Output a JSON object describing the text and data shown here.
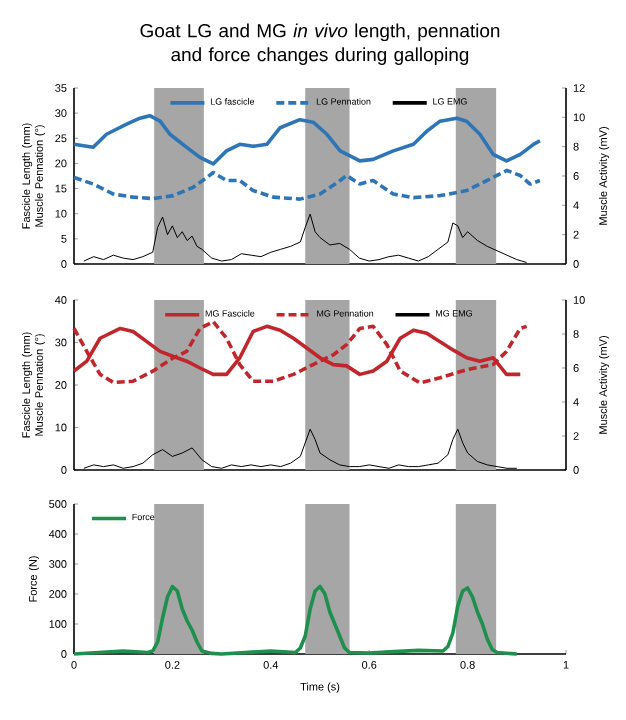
{
  "chart_data": [
    {
      "type": "line",
      "title": "Goat LG and MG *in vivo* length, pennation and force changes during galloping",
      "ylabel": "Fascicle Length (mm) Muscle Pennation (°)",
      "y2label": "Muscle Activity (mV)",
      "xlim": [
        0,
        1
      ],
      "ylim": [
        0,
        35
      ],
      "yticks": [
        0,
        5,
        10,
        15,
        20,
        25,
        30,
        35
      ],
      "y2lim": [
        0,
        12
      ],
      "y2ticks": [
        0,
        2,
        4,
        6,
        8,
        10,
        12
      ],
      "tick_labels": "y",
      "legend": "top",
      "bands": [
        {
          "axis": "x",
          "from": 0.163,
          "to": 0.264,
          "color": "#a6a6a6"
        },
        {
          "axis": "x",
          "from": 0.47,
          "to": 0.56,
          "color": "#a6a6a6"
        },
        {
          "axis": "x",
          "from": 0.776,
          "to": 0.858,
          "color": "#a6a6a6"
        }
      ],
      "series": [
        {
          "name": "LG fascicle",
          "color": "#2e75b6",
          "line_style": "solid",
          "x": [
            0,
            0.039,
            0.066,
            0.107,
            0.134,
            0.154,
            0.175,
            0.195,
            0.229,
            0.256,
            0.283,
            0.31,
            0.337,
            0.364,
            0.392,
            0.419,
            0.459,
            0.486,
            0.514,
            0.541,
            0.581,
            0.608,
            0.649,
            0.69,
            0.717,
            0.744,
            0.778,
            0.798,
            0.825,
            0.852,
            0.879,
            0.907,
            0.934,
            0.947
          ],
          "values": [
            23.8,
            23.2,
            25.8,
            27.8,
            29,
            29.5,
            28.4,
            25.8,
            23.2,
            21.2,
            19.9,
            22.5,
            23.8,
            23.4,
            23.8,
            27.1,
            28.7,
            28.2,
            25.8,
            22.5,
            20.5,
            20.8,
            22.5,
            23.8,
            26.4,
            28.4,
            29,
            28.4,
            25.8,
            21.8,
            20.5,
            21.8,
            23.8,
            24.5
          ]
        },
        {
          "name": "LG Pennation",
          "color": "#2e75b6",
          "line_style": "dashed",
          "x": [
            0,
            0.039,
            0.08,
            0.12,
            0.161,
            0.202,
            0.243,
            0.27,
            0.283,
            0.31,
            0.337,
            0.364,
            0.405,
            0.459,
            0.5,
            0.541,
            0.554,
            0.581,
            0.608,
            0.649,
            0.69,
            0.744,
            0.798,
            0.839,
            0.88,
            0.907,
            0.927,
            0.947
          ],
          "values": [
            17.2,
            15.9,
            13.9,
            13.3,
            13,
            13.6,
            15.3,
            17.2,
            18.2,
            16.6,
            16.6,
            14.6,
            13.3,
            12.9,
            13.9,
            16.6,
            17.6,
            15.9,
            16.6,
            13.9,
            13.2,
            13.6,
            14.6,
            16.6,
            18.6,
            17.6,
            15.9,
            16.6
          ]
        },
        {
          "name": "LG EMG",
          "color": "#000000",
          "line_style": "solid",
          "axis": "y2",
          "x": [
            0.02,
            0.04,
            0.06,
            0.08,
            0.1,
            0.12,
            0.14,
            0.16,
            0.17,
            0.18,
            0.19,
            0.2,
            0.21,
            0.22,
            0.23,
            0.24,
            0.25,
            0.26,
            0.28,
            0.3,
            0.32,
            0.34,
            0.36,
            0.38,
            0.4,
            0.42,
            0.44,
            0.46,
            0.47,
            0.48,
            0.49,
            0.5,
            0.52,
            0.54,
            0.56,
            0.58,
            0.6,
            0.62,
            0.64,
            0.66,
            0.68,
            0.7,
            0.72,
            0.74,
            0.76,
            0.77,
            0.78,
            0.79,
            0.8,
            0.82,
            0.84,
            0.86,
            0.88,
            0.9,
            0.92
          ],
          "values": [
            0.2,
            0.5,
            0.3,
            0.6,
            0.4,
            0.3,
            0.5,
            0.8,
            2.5,
            3.2,
            2.0,
            2.6,
            1.8,
            2.2,
            1.6,
            1.9,
            1.2,
            1.0,
            0.4,
            0.2,
            0.3,
            0.7,
            0.6,
            0.5,
            0.8,
            1.0,
            1.2,
            1.5,
            2.5,
            3.4,
            2.2,
            1.8,
            1.3,
            1.4,
            1.0,
            0.4,
            0.2,
            0.3,
            0.5,
            0.6,
            0.4,
            0.2,
            0.5,
            1.0,
            1.5,
            2.8,
            2.6,
            1.8,
            2.2,
            1.6,
            1.2,
            0.9,
            0.6,
            0.3,
            0.1
          ]
        }
      ]
    },
    {
      "type": "line",
      "ylabel": "Fascicle Length (mm) Muscle Pennation (°)",
      "y2label": "Muscle Activity (mV)",
      "xlim": [
        0,
        1
      ],
      "ylim": [
        0,
        40
      ],
      "yticks": [
        0,
        10,
        20,
        30,
        40
      ],
      "y2lim": [
        0,
        10
      ],
      "y2ticks": [
        0,
        2,
        4,
        6,
        8,
        10
      ],
      "tick_labels": "y",
      "legend": "top",
      "bands": [
        {
          "axis": "x",
          "from": 0.163,
          "to": 0.264,
          "color": "#a6a6a6"
        },
        {
          "axis": "x",
          "from": 0.47,
          "to": 0.56,
          "color": "#a6a6a6"
        },
        {
          "axis": "x",
          "from": 0.776,
          "to": 0.858,
          "color": "#a6a6a6"
        }
      ],
      "series": [
        {
          "name": "MG Fascicle",
          "color": "#c0272d",
          "line_style": "solid",
          "x": [
            0,
            0.026,
            0.053,
            0.094,
            0.12,
            0.148,
            0.175,
            0.202,
            0.229,
            0.256,
            0.283,
            0.31,
            0.337,
            0.364,
            0.392,
            0.419,
            0.446,
            0.473,
            0.5,
            0.527,
            0.554,
            0.581,
            0.608,
            0.636,
            0.663,
            0.69,
            0.717,
            0.744,
            0.771,
            0.798,
            0.825,
            0.852,
            0.879,
            0.907
          ],
          "values": [
            23.3,
            25.6,
            31,
            33.3,
            32.6,
            30.2,
            27.9,
            26.7,
            25.6,
            24,
            22.5,
            22.5,
            26.4,
            32.6,
            33.8,
            32.9,
            31,
            28.7,
            26.4,
            24.8,
            24.5,
            22.5,
            23.3,
            25.6,
            31,
            32.9,
            32.2,
            30.2,
            28.2,
            26.4,
            25.6,
            26.4,
            22.5,
            22.5
          ]
        },
        {
          "name": "MG Pennation",
          "color": "#c0272d",
          "line_style": "dashed",
          "x": [
            0,
            0.026,
            0.053,
            0.08,
            0.12,
            0.161,
            0.202,
            0.229,
            0.256,
            0.283,
            0.31,
            0.337,
            0.364,
            0.405,
            0.446,
            0.486,
            0.527,
            0.554,
            0.581,
            0.608,
            0.636,
            0.663,
            0.703,
            0.744,
            0.798,
            0.852,
            0.879,
            0.907,
            0.92
          ],
          "values": [
            33.3,
            27.9,
            22.5,
            20.6,
            20.9,
            23.3,
            26.4,
            27.9,
            33.3,
            34.9,
            31,
            24.8,
            20.9,
            20.9,
            22.5,
            24.8,
            27.1,
            29.5,
            33.3,
            33.8,
            29.5,
            23.3,
            20.5,
            21.7,
            23.6,
            24.8,
            27.9,
            33.3,
            33.8
          ]
        },
        {
          "name": "MG EMG",
          "color": "#000000",
          "line_style": "solid",
          "axis": "y2",
          "x": [
            0.02,
            0.04,
            0.06,
            0.08,
            0.1,
            0.12,
            0.14,
            0.16,
            0.18,
            0.2,
            0.22,
            0.24,
            0.26,
            0.28,
            0.3,
            0.32,
            0.34,
            0.36,
            0.38,
            0.4,
            0.42,
            0.44,
            0.46,
            0.47,
            0.48,
            0.49,
            0.5,
            0.52,
            0.54,
            0.56,
            0.58,
            0.6,
            0.62,
            0.64,
            0.66,
            0.68,
            0.7,
            0.72,
            0.74,
            0.76,
            0.77,
            0.78,
            0.79,
            0.8,
            0.82,
            0.84,
            0.86,
            0.88,
            0.9
          ],
          "values": [
            0.1,
            0.3,
            0.2,
            0.3,
            0.1,
            0.2,
            0.4,
            0.9,
            1.2,
            0.8,
            1.0,
            1.3,
            0.6,
            0.2,
            0.1,
            0.3,
            0.2,
            0.3,
            0.2,
            0.3,
            0.2,
            0.4,
            0.8,
            1.6,
            2.4,
            1.8,
            1.0,
            0.6,
            0.3,
            0.2,
            0.2,
            0.3,
            0.2,
            0.1,
            0.3,
            0.2,
            0.2,
            0.3,
            0.4,
            0.9,
            1.8,
            2.4,
            1.6,
            1.0,
            0.5,
            0.3,
            0.2,
            0.1,
            0.1
          ]
        }
      ]
    },
    {
      "type": "line",
      "ylabel": "Force (N)",
      "xlabel": "Time (s)",
      "xlim": [
        0,
        1
      ],
      "xticks": [
        0,
        0.2,
        0.4,
        0.6,
        0.8,
        1
      ],
      "ylim": [
        0,
        500
      ],
      "yticks": [
        0,
        100,
        200,
        300,
        400,
        500
      ],
      "legend": "top left",
      "bands": [
        {
          "axis": "x",
          "from": 0.163,
          "to": 0.264,
          "color": "#a6a6a6"
        },
        {
          "axis": "x",
          "from": 0.47,
          "to": 0.56,
          "color": "#a6a6a6"
        },
        {
          "axis": "x",
          "from": 0.776,
          "to": 0.858,
          "color": "#a6a6a6"
        }
      ],
      "series": [
        {
          "name": "Force",
          "color": "#1f8f4e",
          "line_style": "solid",
          "x": [
            0,
            0.05,
            0.1,
            0.15,
            0.16,
            0.17,
            0.18,
            0.19,
            0.2,
            0.21,
            0.22,
            0.23,
            0.24,
            0.25,
            0.26,
            0.28,
            0.3,
            0.35,
            0.4,
            0.45,
            0.46,
            0.47,
            0.48,
            0.49,
            0.5,
            0.51,
            0.52,
            0.53,
            0.54,
            0.55,
            0.56,
            0.6,
            0.65,
            0.7,
            0.75,
            0.76,
            0.77,
            0.78,
            0.79,
            0.8,
            0.81,
            0.82,
            0.83,
            0.84,
            0.85,
            0.86,
            0.9
          ],
          "values": [
            0,
            5,
            10,
            5,
            10,
            40,
            120,
            190,
            225,
            210,
            150,
            110,
            80,
            40,
            10,
            2,
            0,
            5,
            10,
            5,
            20,
            60,
            150,
            210,
            225,
            200,
            140,
            100,
            60,
            20,
            5,
            3,
            8,
            12,
            10,
            25,
            70,
            160,
            210,
            220,
            190,
            140,
            100,
            50,
            15,
            5,
            0
          ]
        }
      ]
    }
  ]
}
